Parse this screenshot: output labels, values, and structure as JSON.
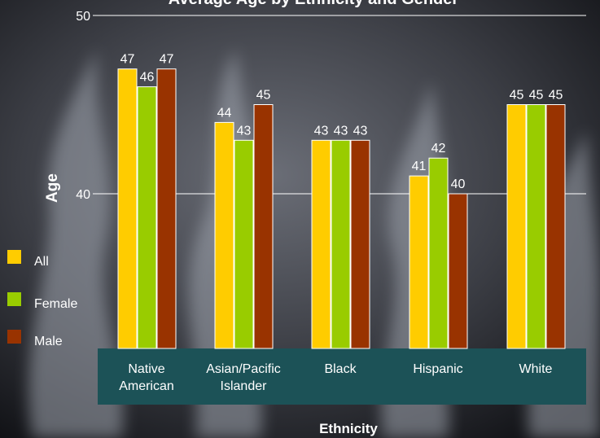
{
  "chart_data": {
    "type": "bar",
    "title": "Average Age by Ethnicity and Gender",
    "xlabel": "Ethnicity",
    "ylabel": "Age",
    "categories": [
      [
        "Native",
        "American"
      ],
      [
        "Asian/Pacific",
        "Islander"
      ],
      [
        "Black"
      ],
      [
        "Hispanic"
      ],
      [
        "White"
      ]
    ],
    "series": [
      {
        "name": "All",
        "values": [
          47,
          44,
          43,
          41,
          45
        ],
        "color": "#ffcc00"
      },
      {
        "name": "Female",
        "values": [
          46,
          43,
          43,
          42,
          45
        ],
        "color": "#99cc00"
      },
      {
        "name": "Male",
        "values": [
          47,
          45,
          43,
          40,
          45
        ],
        "color": "#993300"
      }
    ],
    "ylim": [
      40,
      50
    ],
    "yticks": [
      40,
      50
    ],
    "ytick_labels": [
      "40",
      "50"
    ],
    "grid": true,
    "legend_position": "left",
    "axis_band_color": "#1c5257"
  }
}
